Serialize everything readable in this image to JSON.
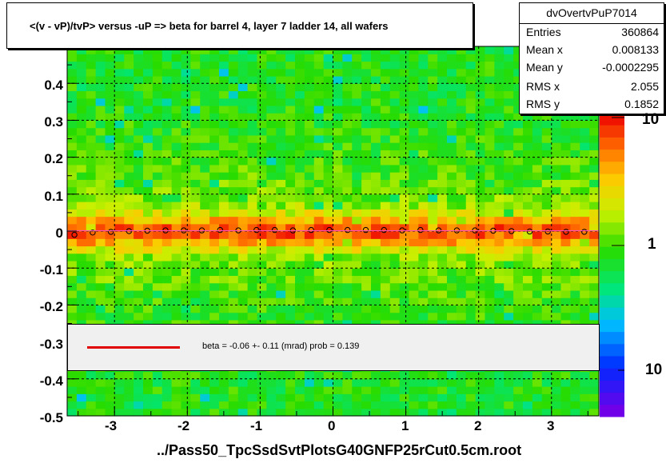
{
  "title": "<(v - vP)/tvP> versus  -uP => beta for barrel 4, layer 7 ladder 14, all wafers",
  "stats": {
    "name": "dvOvertvPuP7014",
    "rows": [
      {
        "key": "Entries",
        "value": "360864"
      },
      {
        "key": "Mean x",
        "value": "0.008133"
      },
      {
        "key": "Mean y",
        "value": "-0.0002295"
      },
      {
        "key": "RMS x",
        "value": "2.055"
      },
      {
        "key": "RMS y",
        "value": "0.1852"
      }
    ]
  },
  "legend": {
    "text": "beta =   -0.06 +-  0.11 (mrad) prob = 0.139",
    "line_color": "#e00000"
  },
  "colors": {
    "frame_background": "#ffffff",
    "fit_line": "#e00000",
    "profile_marker": "#000000"
  },
  "chart_data": {
    "type": "heatmap",
    "title": "<(v - vP)/tvP> versus  -uP => beta for barrel 4, layer 7 ladder 14, all wafers",
    "xlabel": "../Pass50_TpcSsdSvtPlotsG40GNFP25rCut0.5cm.root",
    "ylabel": "",
    "xlim": [
      -3.65,
      3.65
    ],
    "ylim": [
      -0.5,
      0.5
    ],
    "x_ticks": [
      "-3",
      "-2",
      "-1",
      "0",
      "1",
      "2",
      "3"
    ],
    "y_ticks": [
      "-0.5",
      "-0.4",
      "-0.3",
      "-0.2",
      "-0.1",
      "0",
      "0.1",
      "0.2",
      "0.3",
      "0.4"
    ],
    "z_axis": {
      "scale": "log",
      "tick_labels": [
        "10",
        "1",
        "10"
      ]
    },
    "grid": true,
    "profile": {
      "x": [
        -3.55,
        -3.3,
        -3.05,
        -2.8,
        -2.55,
        -2.3,
        -2.05,
        -1.8,
        -1.55,
        -1.3,
        -1.05,
        -0.8,
        -0.55,
        -0.3,
        -0.05,
        0.2,
        0.45,
        0.7,
        0.95,
        1.2,
        1.45,
        1.7,
        1.95,
        2.2,
        2.45,
        2.7,
        2.95,
        3.2,
        3.45
      ],
      "y": [
        -0.01,
        -0.004,
        -0.002,
        0.0,
        0.001,
        0.002,
        0.002,
        0.002,
        0.003,
        0.002,
        0.003,
        0.003,
        0.002,
        0.003,
        0.003,
        0.003,
        0.003,
        0.003,
        0.002,
        0.003,
        0.002,
        0.002,
        0.002,
        0.001,
        0.0,
        -0.001,
        -0.001,
        -0.002,
        -0.002
      ]
    },
    "fit": {
      "beta_mrad": -0.06,
      "error_mrad": 0.11,
      "prob": 0.139
    }
  }
}
